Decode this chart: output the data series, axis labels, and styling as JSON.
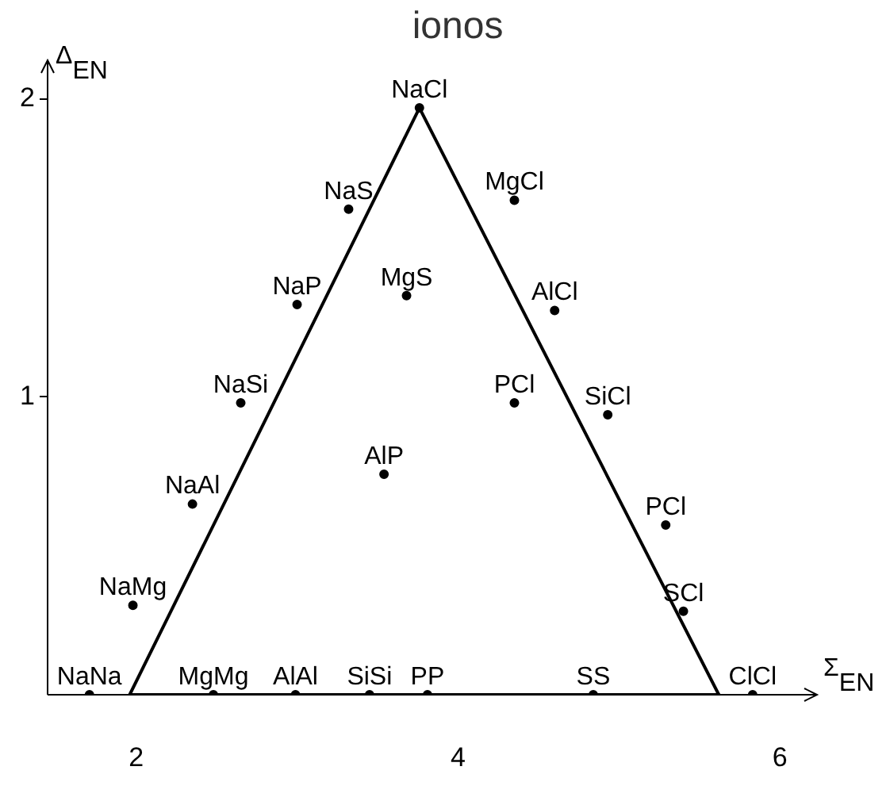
{
  "chart_data": {
    "type": "line",
    "title": "ionos",
    "xlabel": "Σ$_{EN}$",
    "ylabel": "Δ$_{EN}$",
    "xlim": [
      1.45,
      6.23
    ],
    "ylim": [
      0,
      2.13
    ],
    "xticks": [
      2,
      4,
      6
    ],
    "yticks": [
      1,
      2
    ],
    "marker": "none",
    "series": [
      {
        "color": "#000000",
        "x": [
          1.96,
          3.76
        ],
        "values": [
          0,
          1.97
        ]
      },
      {
        "color": "#000000",
        "x": [
          3.76,
          5.62
        ],
        "values": [
          1.97,
          0
        ]
      },
      {
        "color": "#000000",
        "x": [
          1.96,
          5.62
        ],
        "values": [
          0,
          0
        ]
      },
      {
        "type": "scatter",
        "marker": "circle",
        "color": "#000000",
        "x": [
          3.76,
          3.32,
          4.35,
          3.0,
          3.68,
          4.6,
          2.65,
          4.35,
          4.93,
          3.54,
          2.35,
          5.29,
          1.98,
          5.4,
          1.71,
          2.48,
          2.99,
          3.45,
          3.81,
          4.84,
          5.83
        ],
        "values": [
          1.97,
          1.63,
          1.66,
          1.31,
          1.34,
          1.29,
          0.98,
          0.98,
          0.94,
          0.74,
          0.64,
          0.57,
          0.3,
          0.28,
          0,
          0,
          0,
          0,
          0,
          0,
          0
        ]
      }
    ],
    "annotations": [
      {
        "text": "NaCl",
        "x": 3.76,
        "y": 1.97
      },
      {
        "text": "NaS",
        "x": 3.32,
        "y": 1.63
      },
      {
        "text": "MgCl",
        "x": 4.35,
        "y": 1.66
      },
      {
        "text": "NaP",
        "x": 3.0,
        "y": 1.31
      },
      {
        "text": "MgS",
        "x": 3.68,
        "y": 1.34
      },
      {
        "text": "AlCl",
        "x": 4.6,
        "y": 1.29
      },
      {
        "text": "NaSi",
        "x": 2.65,
        "y": 0.98
      },
      {
        "text": "PCl",
        "x": 4.35,
        "y": 0.98
      },
      {
        "text": "SiCl",
        "x": 4.93,
        "y": 0.94
      },
      {
        "text": "AlP",
        "x": 3.54,
        "y": 0.74
      },
      {
        "text": "NaAl",
        "x": 2.35,
        "y": 0.64
      },
      {
        "text": "PCl",
        "x": 5.29,
        "y": 0.57
      },
      {
        "text": "NaMg",
        "x": 1.98,
        "y": 0.3
      },
      {
        "text": "SCl",
        "x": 5.4,
        "y": 0.28
      },
      {
        "text": "NaNa",
        "x": 1.71,
        "y": 0
      },
      {
        "text": "MgMg",
        "x": 2.48,
        "y": 0
      },
      {
        "text": "AlAl",
        "x": 2.99,
        "y": 0
      },
      {
        "text": "SiSi",
        "x": 3.45,
        "y": 0
      },
      {
        "text": "PP",
        "x": 3.81,
        "y": 0
      },
      {
        "text": "SS",
        "x": 4.84,
        "y": 0
      },
      {
        "text": "ClCl",
        "x": 5.83,
        "y": 0
      }
    ]
  }
}
